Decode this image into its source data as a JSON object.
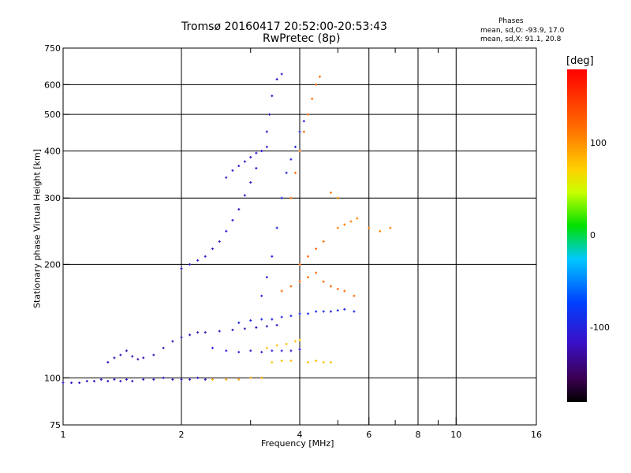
{
  "chart_data": {
    "type": "scatter",
    "title": "Tromsø 20160417 20:52:00-20:53:43",
    "subtitle": "RwPretec (8p)",
    "info": {
      "heading": "Phases",
      "line_o": "mean, sd,O: -93.9, 17.0",
      "line_x": "mean, sd,X: 91.1, 20.8"
    },
    "xlabel": "Frequency [MHz]",
    "ylabel": "Stationary phase Virtual Height [km]",
    "x_scale": "log",
    "y_scale": "log",
    "xlim": [
      1,
      16
    ],
    "ylim": [
      75,
      750
    ],
    "x_ticks": [
      1,
      2,
      4,
      6,
      8,
      10,
      16
    ],
    "x_tick_labels": [
      "1",
      "2",
      "4",
      "6",
      "8",
      "10",
      "16"
    ],
    "x_minor_ticks": [
      3,
      5,
      7,
      9
    ],
    "y_ticks": [
      75,
      100,
      200,
      300,
      400,
      500,
      600,
      750
    ],
    "y_tick_labels": [
      "75",
      "100",
      "200",
      "300",
      "400",
      "500",
      "600",
      "750"
    ],
    "grid": true,
    "grid_x": [
      2,
      4,
      6,
      8,
      10
    ],
    "grid_y": [
      100,
      200,
      300,
      400,
      500,
      600
    ],
    "colorbar": {
      "unit": "[deg]",
      "range": [
        -180,
        180
      ],
      "ticks": [
        100,
        0,
        -100
      ],
      "tick_labels": [
        "100",
        "0",
        "-100"
      ]
    },
    "series": [
      {
        "phase": -115,
        "points": [
          [
            1.0,
            97
          ],
          [
            1.05,
            97
          ],
          [
            1.1,
            97
          ],
          [
            1.15,
            98
          ],
          [
            1.2,
            98
          ],
          [
            1.25,
            99
          ],
          [
            1.3,
            98
          ],
          [
            1.35,
            99
          ],
          [
            1.4,
            98
          ],
          [
            1.45,
            99
          ],
          [
            1.5,
            98
          ],
          [
            1.6,
            99
          ],
          [
            1.7,
            99
          ],
          [
            1.8,
            100
          ],
          [
            1.9,
            99
          ],
          [
            2.0,
            99
          ],
          [
            2.1,
            99
          ],
          [
            2.2,
            100
          ],
          [
            2.3,
            99
          ]
        ]
      },
      {
        "phase": -120,
        "points": [
          [
            1.3,
            110
          ],
          [
            1.35,
            113
          ],
          [
            1.4,
            115
          ],
          [
            1.45,
            118
          ],
          [
            1.5,
            114
          ],
          [
            1.55,
            112
          ],
          [
            1.6,
            113
          ],
          [
            1.7,
            115
          ],
          [
            1.8,
            120
          ],
          [
            1.9,
            125
          ],
          [
            2.0,
            128
          ],
          [
            2.1,
            130
          ],
          [
            2.2,
            132
          ],
          [
            2.3,
            132
          ],
          [
            2.5,
            133
          ],
          [
            2.7,
            134
          ],
          [
            2.9,
            135
          ],
          [
            3.1,
            136
          ],
          [
            3.3,
            137
          ],
          [
            3.5,
            138
          ]
        ]
      },
      {
        "phase": -110,
        "points": [
          [
            2.0,
            195
          ],
          [
            2.1,
            200
          ],
          [
            2.2,
            205
          ],
          [
            2.3,
            210
          ],
          [
            2.4,
            220
          ],
          [
            2.5,
            230
          ],
          [
            2.6,
            245
          ],
          [
            2.7,
            262
          ],
          [
            2.8,
            280
          ],
          [
            2.9,
            305
          ],
          [
            3.0,
            330
          ],
          [
            3.1,
            360
          ],
          [
            3.2,
            400
          ],
          [
            3.3,
            450
          ],
          [
            3.35,
            500
          ],
          [
            3.4,
            560
          ],
          [
            3.5,
            620
          ],
          [
            3.6,
            640
          ]
        ]
      },
      {
        "phase": -105,
        "points": [
          [
            2.4,
            120
          ],
          [
            2.6,
            118
          ],
          [
            2.8,
            117
          ],
          [
            3.0,
            118
          ],
          [
            3.2,
            117
          ],
          [
            3.4,
            118
          ],
          [
            3.6,
            118
          ],
          [
            3.8,
            118
          ],
          [
            4.0,
            119
          ]
        ]
      },
      {
        "phase": -95,
        "points": [
          [
            2.8,
            140
          ],
          [
            3.0,
            142
          ],
          [
            3.2,
            143
          ],
          [
            3.4,
            143
          ],
          [
            3.6,
            145
          ],
          [
            3.8,
            146
          ],
          [
            4.0,
            148
          ],
          [
            4.2,
            148
          ],
          [
            4.4,
            150
          ],
          [
            4.6,
            150
          ],
          [
            4.8,
            150
          ],
          [
            5.0,
            151
          ],
          [
            5.2,
            152
          ],
          [
            5.5,
            150
          ]
        ]
      },
      {
        "phase": -100,
        "points": [
          [
            3.2,
            165
          ],
          [
            3.3,
            185
          ],
          [
            3.4,
            210
          ],
          [
            3.5,
            250
          ],
          [
            3.6,
            300
          ],
          [
            3.7,
            350
          ],
          [
            3.8,
            380
          ],
          [
            3.9,
            410
          ],
          [
            4.0,
            450
          ],
          [
            4.1,
            480
          ]
        ]
      },
      {
        "phase": -110,
        "points": [
          [
            2.6,
            340
          ],
          [
            2.7,
            355
          ],
          [
            2.8,
            365
          ],
          [
            2.9,
            375
          ],
          [
            3.0,
            385
          ],
          [
            3.1,
            395
          ],
          [
            3.2,
            400
          ],
          [
            3.3,
            410
          ]
        ]
      },
      {
        "phase": 90,
        "points": [
          [
            2.4,
            99
          ],
          [
            2.6,
            99
          ],
          [
            2.8,
            99
          ],
          [
            3.0,
            100
          ],
          [
            3.2,
            100
          ]
        ]
      },
      {
        "phase": 80,
        "points": [
          [
            3.3,
            120
          ],
          [
            3.5,
            122
          ],
          [
            3.7,
            123
          ],
          [
            3.9,
            125
          ],
          [
            4.0,
            126
          ],
          [
            3.4,
            110
          ],
          [
            3.6,
            111
          ],
          [
            3.8,
            111
          ],
          [
            4.2,
            110
          ],
          [
            4.4,
            111
          ],
          [
            4.6,
            110
          ],
          [
            4.8,
            110
          ]
        ]
      },
      {
        "phase": 120,
        "points": [
          [
            3.6,
            170
          ],
          [
            3.8,
            175
          ],
          [
            4.0,
            180
          ],
          [
            4.2,
            185
          ],
          [
            4.4,
            190
          ],
          [
            4.6,
            180
          ],
          [
            4.8,
            175
          ],
          [
            5.0,
            172
          ],
          [
            5.2,
            170
          ],
          [
            5.5,
            165
          ],
          [
            4.0,
            200
          ],
          [
            4.2,
            210
          ],
          [
            4.4,
            220
          ],
          [
            4.6,
            230
          ],
          [
            3.8,
            300
          ],
          [
            3.9,
            350
          ],
          [
            4.0,
            400
          ],
          [
            4.1,
            450
          ],
          [
            4.2,
            500
          ],
          [
            4.3,
            550
          ],
          [
            4.4,
            600
          ],
          [
            4.5,
            630
          ]
        ]
      },
      {
        "phase": 110,
        "points": [
          [
            5.0,
            250
          ],
          [
            5.2,
            255
          ],
          [
            5.4,
            260
          ],
          [
            5.6,
            265
          ],
          [
            6.0,
            250
          ],
          [
            6.4,
            245
          ],
          [
            6.8,
            250
          ],
          [
            4.8,
            310
          ],
          [
            5.0,
            300
          ]
        ]
      }
    ]
  }
}
